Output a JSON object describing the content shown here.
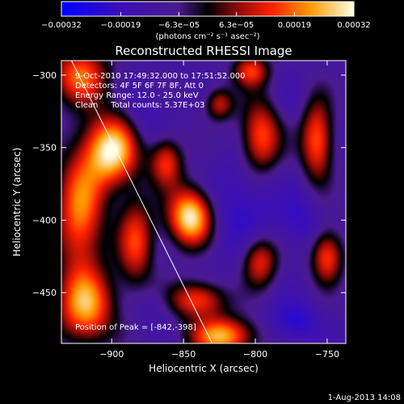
{
  "chart_data": {
    "type": "heatmap",
    "title": "Reconstructed RHESSI Image",
    "xlabel": "Heliocentric X (arcsec)",
    "ylabel": "Heliocentric Y (arcsec)",
    "xlim": [
      -935,
      -737
    ],
    "ylim": [
      -485,
      -290
    ],
    "xticks": [
      {
        "value": -900,
        "label": "−900"
      },
      {
        "value": -850,
        "label": "−850"
      },
      {
        "value": -800,
        "label": "−800"
      },
      {
        "value": -750,
        "label": "−750"
      }
    ],
    "yticks": [
      {
        "value": -300,
        "label": "−300"
      },
      {
        "value": -350,
        "label": "−350"
      },
      {
        "value": -400,
        "label": "−400"
      },
      {
        "value": -450,
        "label": "−450"
      }
    ],
    "colorbar": {
      "range": [
        -0.00032,
        0.00032
      ],
      "unit_label": "(photons cm⁻² s⁻¹ asec⁻²)",
      "ticks": [
        {
          "value": -0.00032,
          "label": "−0.00032"
        },
        {
          "value": -0.00019,
          "label": "−0.00019"
        },
        {
          "value": -6.3e-05,
          "label": "−6.3e−05"
        },
        {
          "value": 6.3e-05,
          "label": "6.3e−05"
        },
        {
          "value": 0.00019,
          "label": "0.00019"
        },
        {
          "value": 0.00032,
          "label": "0.00032"
        }
      ]
    },
    "annotations": [
      "9-Oct-2010 17:49:32.000 to 17:51:52.000",
      "Detectors: 4F 5F 6F 7F 8F, Att 0",
      "Energy Range: 12.0 - 25.0 keV",
      "Clean     Total counts: 5.37E+03"
    ],
    "peak_label": "Position of Peak = [-842,-398]",
    "limb_line": [
      [
        -928,
        -290
      ],
      [
        -830,
        -485
      ]
    ],
    "sources": [
      {
        "x": -922,
        "y": -300,
        "value": 0.00018,
        "sx": 14,
        "sy": 14
      },
      {
        "x": -900,
        "y": -352,
        "value": 0.0003,
        "sx": 13,
        "sy": 17
      },
      {
        "x": -922,
        "y": -395,
        "value": 0.0002,
        "sx": 12,
        "sy": 30
      },
      {
        "x": -918,
        "y": -460,
        "value": 0.00022,
        "sx": 14,
        "sy": 18
      },
      {
        "x": -883,
        "y": -415,
        "value": 0.00014,
        "sx": 9,
        "sy": 22
      },
      {
        "x": -845,
        "y": -398,
        "value": 0.00032,
        "sx": 11,
        "sy": 14
      },
      {
        "x": -862,
        "y": -360,
        "value": 0.00014,
        "sx": 8,
        "sy": 12
      },
      {
        "x": -840,
        "y": -455,
        "value": 0.00016,
        "sx": 14,
        "sy": 9
      },
      {
        "x": -823,
        "y": -480,
        "value": 0.00024,
        "sx": 16,
        "sy": 9
      },
      {
        "x": -796,
        "y": -343,
        "value": 0.00018,
        "sx": 10,
        "sy": 18
      },
      {
        "x": -797,
        "y": -428,
        "value": 0.00016,
        "sx": 9,
        "sy": 13
      },
      {
        "x": -803,
        "y": -297,
        "value": 0.00014,
        "sx": 9,
        "sy": 8
      },
      {
        "x": -825,
        "y": -320,
        "value": 0.0001,
        "sx": 7,
        "sy": 8
      },
      {
        "x": -757,
        "y": -345,
        "value": 0.00018,
        "sx": 8,
        "sy": 20
      },
      {
        "x": -750,
        "y": -425,
        "value": 0.00016,
        "sx": 8,
        "sy": 13
      },
      {
        "x": -808,
        "y": -395,
        "value": -0.00022,
        "sx": 18,
        "sy": 26
      },
      {
        "x": -773,
        "y": -470,
        "value": -0.00024,
        "sx": 12,
        "sy": 10
      },
      {
        "x": -768,
        "y": -400,
        "value": -0.0002,
        "sx": 10,
        "sy": 14
      },
      {
        "x": -876,
        "y": -330,
        "value": -0.00018,
        "sx": 10,
        "sy": 14
      },
      {
        "x": -872,
        "y": -460,
        "value": -0.00016,
        "sx": 10,
        "sy": 9
      },
      {
        "x": -776,
        "y": -320,
        "value": -0.00014,
        "sx": 9,
        "sy": 12
      }
    ]
  },
  "footer": {
    "date_stamp": "1-Aug-2013 14:08"
  }
}
